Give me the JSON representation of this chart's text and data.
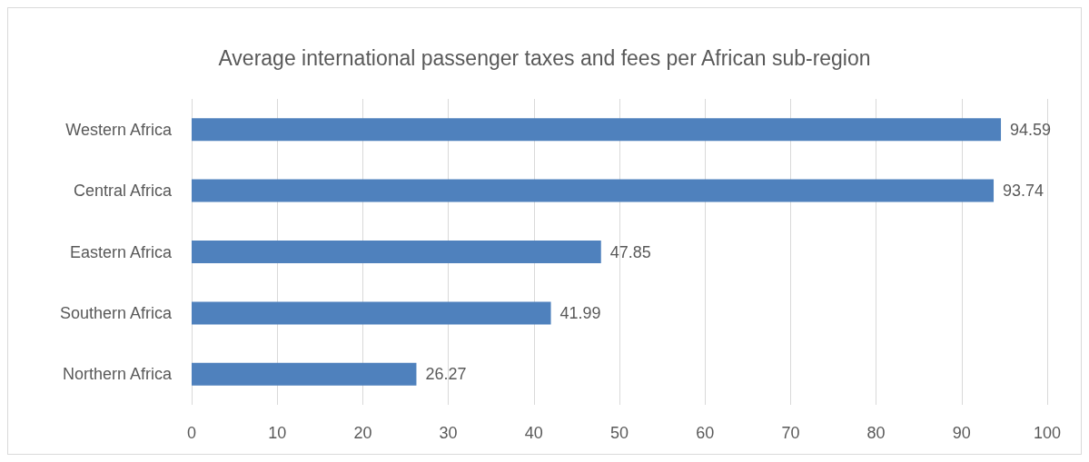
{
  "chart_data": {
    "type": "bar",
    "orientation": "horizontal",
    "title": "Average international passenger taxes and fees per African sub-region",
    "categories": [
      "Western Africa",
      "Central Africa",
      "Eastern Africa",
      "Southern Africa",
      "Northern Africa"
    ],
    "values": [
      94.59,
      93.74,
      47.85,
      41.99,
      26.27
    ],
    "color": "#4f81bd",
    "xlim": [
      0,
      100
    ],
    "xticks": [
      0,
      10,
      20,
      30,
      40,
      50,
      60,
      70,
      80,
      90,
      100
    ],
    "grid": "x",
    "data_labels": true
  }
}
